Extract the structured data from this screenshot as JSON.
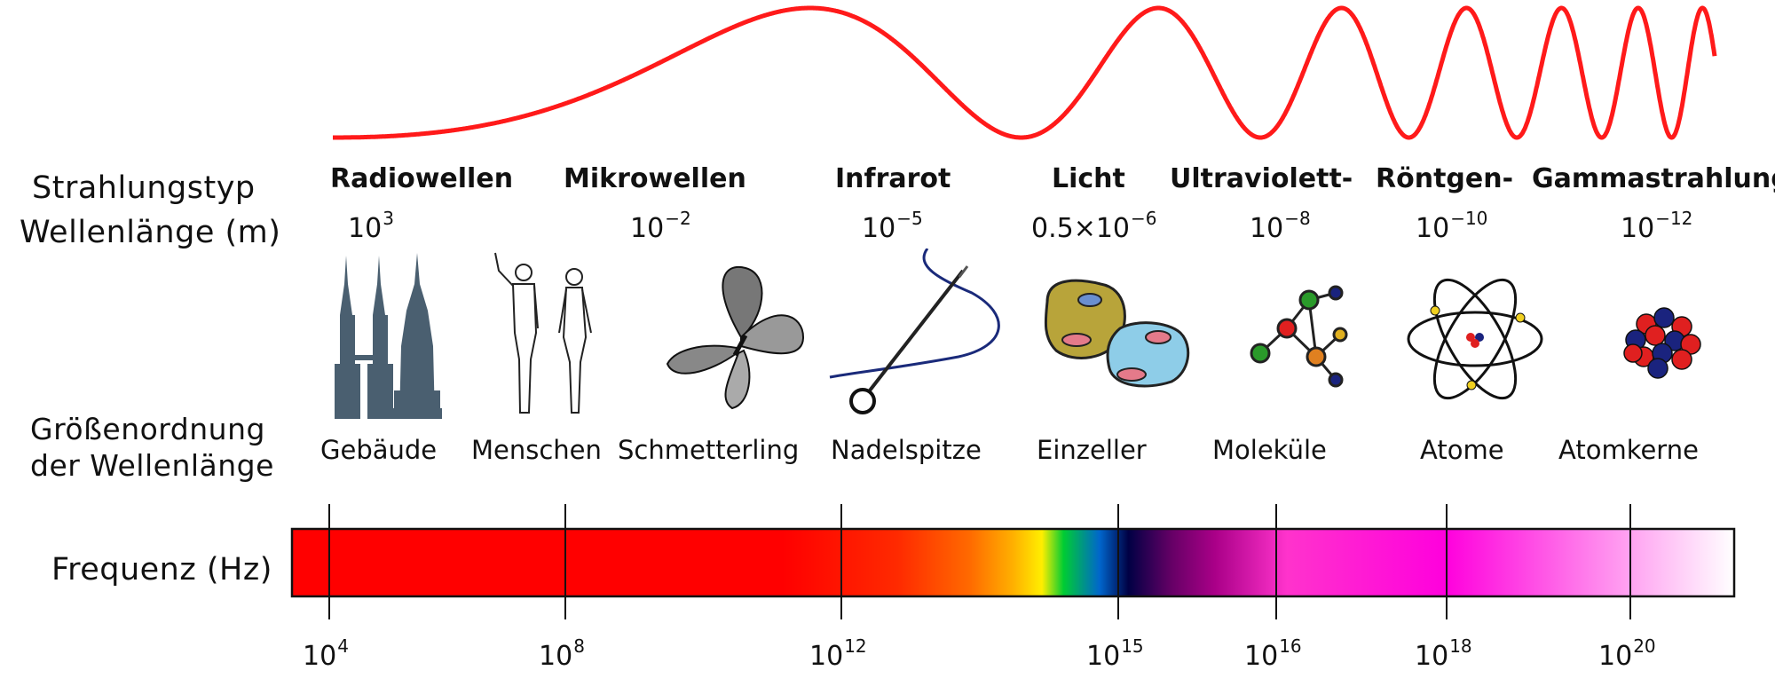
{
  "row_labels": {
    "radiation_type": "Strahlungstyp",
    "wavelength": "Wellenlänge (m)",
    "magnitude_line1": "Größenordnung",
    "magnitude_line2": "der Wellenlänge",
    "frequency": "Frequenz (Hz)"
  },
  "radiation_types": [
    "Radiowellen",
    "Mikrowellen",
    "Infrarot",
    "Licht",
    "Ultraviolett-",
    "Röntgen-",
    "Gammastrahlung"
  ],
  "wavelengths": [
    {
      "base": "10",
      "exp": "3"
    },
    {
      "base": "10",
      "exp": "−2"
    },
    {
      "base": "10",
      "exp": "−5"
    },
    {
      "base": "0.5×10",
      "exp": "−6"
    },
    {
      "base": "10",
      "exp": "−8"
    },
    {
      "base": "10",
      "exp": "−10"
    },
    {
      "base": "10",
      "exp": "−12"
    }
  ],
  "objects": [
    {
      "label": "Gebäude",
      "icon": "buildings-icon"
    },
    {
      "label": "Menschen",
      "icon": "humans-icon"
    },
    {
      "label": "Schmetterling",
      "icon": "butterfly-icon"
    },
    {
      "label": "Nadelspitze",
      "icon": "needle-icon"
    },
    {
      "label": "Einzeller",
      "icon": "single-cell-icon"
    },
    {
      "label": "Moleküle",
      "icon": "molecule-icon"
    },
    {
      "label": "Atome",
      "icon": "atom-icon"
    },
    {
      "label": "Atomkerne",
      "icon": "nucleus-icon"
    }
  ],
  "frequency_ticks": [
    {
      "base": "10",
      "exp": "4"
    },
    {
      "base": "10",
      "exp": "8"
    },
    {
      "base": "10",
      "exp": "12"
    },
    {
      "base": "10",
      "exp": "15"
    },
    {
      "base": "10",
      "exp": "16"
    },
    {
      "base": "10",
      "exp": "18"
    },
    {
      "base": "10",
      "exp": "20"
    }
  ],
  "colors": {
    "wave": "#ff1a1a",
    "bar_gradient": [
      "#ff0000",
      "#ff0000",
      "#ff2a00",
      "#ff6a00",
      "#ffd400",
      "#00cc33",
      "#0033cc",
      "#000044",
      "#aa0088",
      "#ff33cc",
      "#ff00dd",
      "#ffffff"
    ],
    "building": "#4a5f70"
  }
}
